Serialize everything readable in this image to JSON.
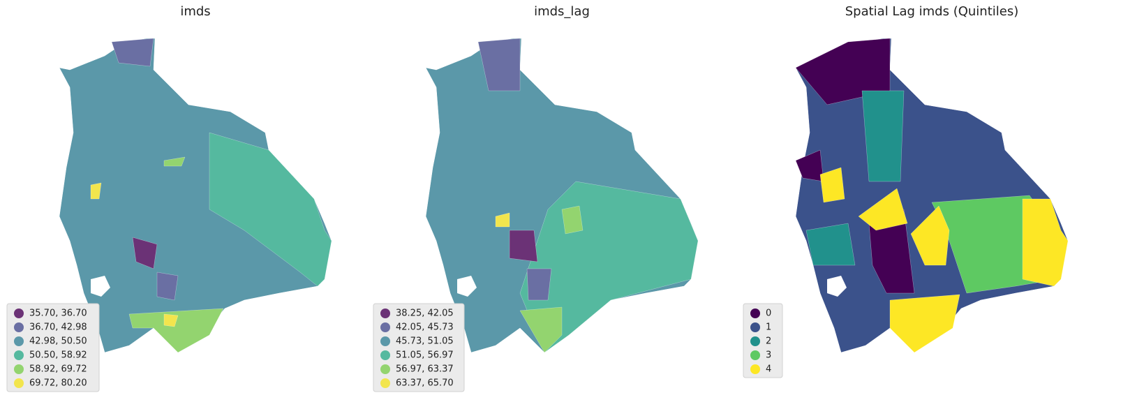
{
  "maps": [
    {
      "title": "imds",
      "legend": [
        {
          "label": "35.70, 36.70",
          "color": "#6b3276"
        },
        {
          "label": "36.70, 42.98",
          "color": "#6a6fa3"
        },
        {
          "label": "42.98, 50.50",
          "color": "#5b98a9"
        },
        {
          "label": "50.50, 58.92",
          "color": "#55b99f"
        },
        {
          "label": "58.92, 69.72",
          "color": "#93d46f"
        },
        {
          "label": "69.72, 80.20",
          "color": "#f2e54d"
        }
      ]
    },
    {
      "title": "imds_lag",
      "legend": [
        {
          "label": "38.25, 42.05",
          "color": "#6b3276"
        },
        {
          "label": "42.05, 45.73",
          "color": "#6a6fa3"
        },
        {
          "label": "45.73, 51.05",
          "color": "#5b98a9"
        },
        {
          "label": "51.05, 56.97",
          "color": "#55b99f"
        },
        {
          "label": "56.97, 63.37",
          "color": "#93d46f"
        },
        {
          "label": "63.37, 65.70",
          "color": "#f2e54d"
        }
      ]
    },
    {
      "title": "Spatial Lag imds (Quintiles)",
      "legend": [
        {
          "label": "0",
          "color": "#440154"
        },
        {
          "label": "1",
          "color": "#3b528b"
        },
        {
          "label": "2",
          "color": "#21918c"
        },
        {
          "label": "3",
          "color": "#5ec962"
        },
        {
          "label": "4",
          "color": "#fde725"
        }
      ]
    }
  ]
}
